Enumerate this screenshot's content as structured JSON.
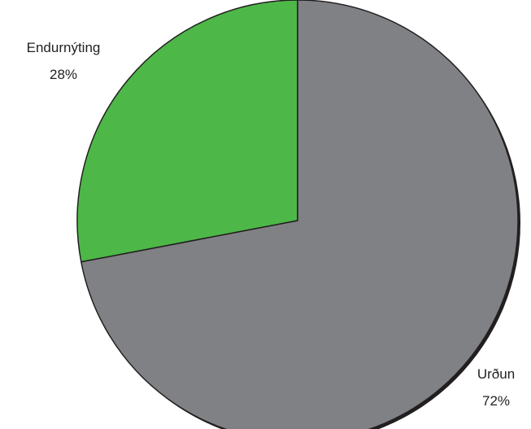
{
  "chart_data": {
    "type": "pie",
    "title": "",
    "slices": [
      {
        "label": "Endurnýting",
        "value": 28,
        "value_label": "28%",
        "color": "#4db848"
      },
      {
        "label": "Urðun",
        "value": 72,
        "value_label": "72%",
        "color": "#808184"
      }
    ],
    "start": "top",
    "direction": "counterclockwise-from-top",
    "has_shadow": true
  }
}
